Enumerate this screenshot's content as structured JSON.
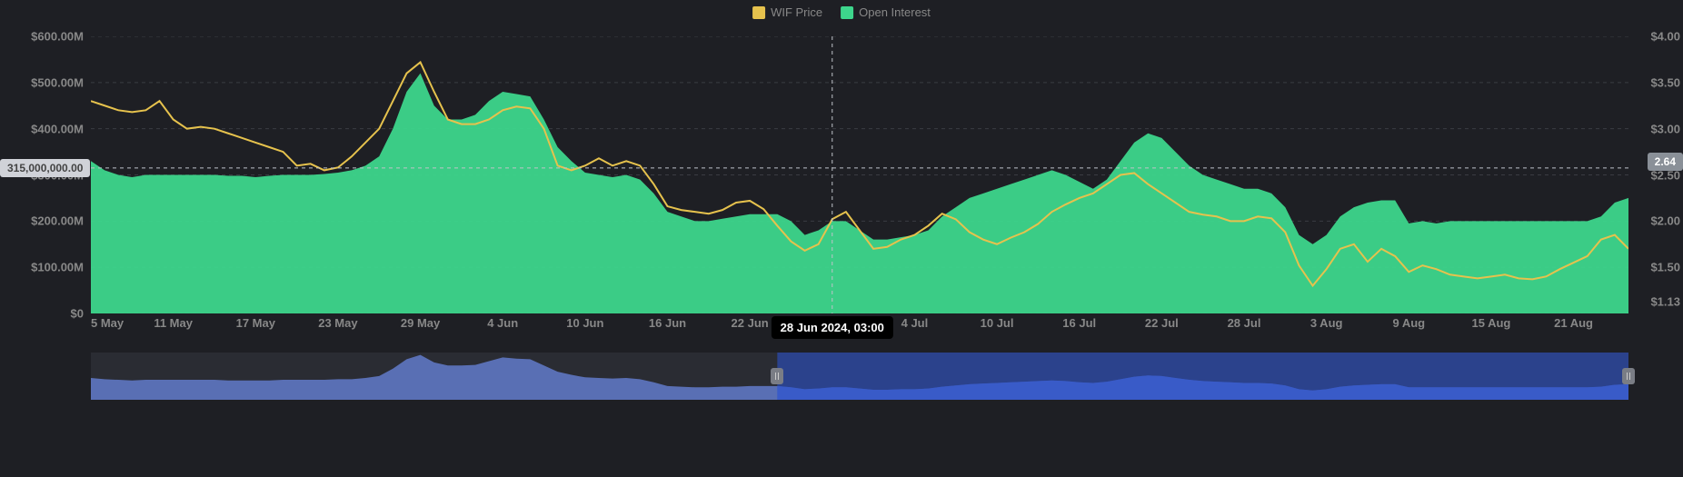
{
  "legend": {
    "items": [
      {
        "label": "WIF Price",
        "color": "#e6c24d"
      },
      {
        "label": "Open Interest",
        "color": "#3dd68c"
      }
    ]
  },
  "chart": {
    "background": "#1e1f24",
    "grid_color": "#3a3c42",
    "grid_dash": "4 4",
    "crosshair_color": "#bfc2c9",
    "crosshair_dash": "4 4",
    "y_left": {
      "min": 0,
      "max": 600000000,
      "ticks": [
        {
          "v": 0,
          "label": "$0"
        },
        {
          "v": 100000000,
          "label": "$100.00M"
        },
        {
          "v": 200000000,
          "label": "$200.00M"
        },
        {
          "v": 300000000,
          "label": "$300.00M"
        },
        {
          "v": 400000000,
          "label": "$400.00M"
        },
        {
          "v": 500000000,
          "label": "$500.00M"
        },
        {
          "v": 600000000,
          "label": "$600.00M"
        }
      ],
      "callout": {
        "value": 315000000,
        "label": "315,000,000.00",
        "bg": "#d0d2d8",
        "fg": "#444"
      }
    },
    "y_right": {
      "min": 1.0,
      "max": 4.0,
      "ticks": [
        {
          "v": 1.13,
          "label": "$1.13"
        },
        {
          "v": 1.5,
          "label": "$1.50"
        },
        {
          "v": 2.0,
          "label": "$2.00"
        },
        {
          "v": 2.5,
          "label": "$2.50"
        },
        {
          "v": 3.0,
          "label": "$3.00"
        },
        {
          "v": 3.5,
          "label": "$3.50"
        },
        {
          "v": 4.0,
          "label": "$4.00"
        }
      ],
      "callout": {
        "value": 2.64,
        "label": "2.64",
        "bg": "#8a9098",
        "fg": "#fff"
      }
    },
    "x": {
      "min": 0,
      "max": 112,
      "labels": [
        {
          "i": 0,
          "label": "5 May"
        },
        {
          "i": 6,
          "label": "11 May"
        },
        {
          "i": 12,
          "label": "17 May"
        },
        {
          "i": 18,
          "label": "23 May"
        },
        {
          "i": 24,
          "label": "29 May"
        },
        {
          "i": 30,
          "label": "4 Jun"
        },
        {
          "i": 36,
          "label": "10 Jun"
        },
        {
          "i": 42,
          "label": "16 Jun"
        },
        {
          "i": 48,
          "label": "22 Jun"
        },
        {
          "i": 60,
          "label": "4 Jul"
        },
        {
          "i": 66,
          "label": "10 Jul"
        },
        {
          "i": 72,
          "label": "16 Jul"
        },
        {
          "i": 78,
          "label": "22 Jul"
        },
        {
          "i": 84,
          "label": "28 Jul"
        },
        {
          "i": 90,
          "label": "3 Aug"
        },
        {
          "i": 96,
          "label": "9 Aug"
        },
        {
          "i": 102,
          "label": "15 Aug"
        },
        {
          "i": 108,
          "label": "21 Aug"
        }
      ],
      "crosshair": {
        "i": 54,
        "label": "28 Jun 2024, 03:00"
      }
    },
    "open_interest": {
      "color": "#3dd68c",
      "fill_opacity": 0.95,
      "values": [
        330,
        310,
        300,
        295,
        300,
        300,
        300,
        300,
        300,
        300,
        298,
        298,
        295,
        298,
        300,
        300,
        300,
        302,
        305,
        310,
        320,
        340,
        400,
        480,
        520,
        450,
        420,
        420,
        430,
        460,
        480,
        475,
        470,
        420,
        360,
        330,
        305,
        300,
        295,
        300,
        290,
        260,
        220,
        210,
        200,
        200,
        205,
        210,
        215,
        215,
        215,
        200,
        170,
        180,
        200,
        200,
        180,
        160,
        160,
        165,
        170,
        180,
        210,
        230,
        250,
        260,
        270,
        280,
        290,
        300,
        310,
        300,
        285,
        270,
        290,
        330,
        370,
        390,
        380,
        350,
        320,
        300,
        290,
        280,
        270,
        270,
        260,
        230,
        170,
        150,
        170,
        210,
        230,
        240,
        245,
        245,
        195,
        200,
        195,
        200,
        200,
        200,
        200,
        200,
        200,
        200,
        200,
        200,
        200,
        200,
        210,
        240,
        250
      ]
    },
    "price": {
      "color": "#e6c24d",
      "line_width": 2,
      "values": [
        3.3,
        3.25,
        3.2,
        3.18,
        3.2,
        3.3,
        3.1,
        3.0,
        3.02,
        3.0,
        2.95,
        2.9,
        2.85,
        2.8,
        2.75,
        2.6,
        2.62,
        2.55,
        2.58,
        2.7,
        2.85,
        3.0,
        3.3,
        3.6,
        3.72,
        3.4,
        3.1,
        3.05,
        3.05,
        3.1,
        3.2,
        3.24,
        3.22,
        3.0,
        2.6,
        2.55,
        2.6,
        2.68,
        2.6,
        2.65,
        2.6,
        2.4,
        2.16,
        2.12,
        2.1,
        2.08,
        2.12,
        2.2,
        2.22,
        2.13,
        1.95,
        1.78,
        1.68,
        1.75,
        2.02,
        2.1,
        1.9,
        1.7,
        1.72,
        1.8,
        1.85,
        1.95,
        2.08,
        2.02,
        1.88,
        1.8,
        1.75,
        1.82,
        1.88,
        1.97,
        2.1,
        2.18,
        2.25,
        2.3,
        2.4,
        2.5,
        2.52,
        2.4,
        2.3,
        2.2,
        2.1,
        2.07,
        2.05,
        2.0,
        2.0,
        2.05,
        2.03,
        1.88,
        1.52,
        1.3,
        1.48,
        1.7,
        1.75,
        1.56,
        1.7,
        1.62,
        1.45,
        1.52,
        1.48,
        1.42,
        1.4,
        1.38,
        1.4,
        1.42,
        1.38,
        1.37,
        1.4,
        1.48,
        1.55,
        1.62,
        1.8,
        1.85,
        1.7
      ]
    }
  },
  "navigator": {
    "bg": "#2a2c33",
    "series_color_dark": "#3557c9",
    "series_color_light": "#6a86e0",
    "selection_bg": "rgba(43,85,214,0.55)",
    "handle_color": "#7a7d85",
    "selection": {
      "from": 50,
      "to": 112
    },
    "values": [
      35,
      33,
      32,
      31,
      32,
      32,
      32,
      32,
      32,
      32,
      31,
      31,
      31,
      31,
      32,
      32,
      32,
      32,
      33,
      33,
      35,
      38,
      50,
      65,
      72,
      60,
      55,
      55,
      56,
      62,
      68,
      66,
      65,
      55,
      45,
      40,
      36,
      35,
      34,
      35,
      33,
      28,
      22,
      21,
      20,
      20,
      21,
      21,
      22,
      22,
      22,
      20,
      17,
      18,
      20,
      20,
      18,
      16,
      16,
      17,
      17,
      18,
      21,
      23,
      25,
      26,
      27,
      28,
      29,
      30,
      31,
      30,
      28,
      27,
      29,
      33,
      37,
      39,
      38,
      35,
      32,
      30,
      29,
      28,
      27,
      27,
      26,
      23,
      17,
      15,
      17,
      21,
      23,
      24,
      25,
      25,
      20,
      20,
      20,
      20,
      20,
      20,
      20,
      20,
      20,
      20,
      20,
      20,
      20,
      20,
      21,
      24,
      25
    ]
  }
}
